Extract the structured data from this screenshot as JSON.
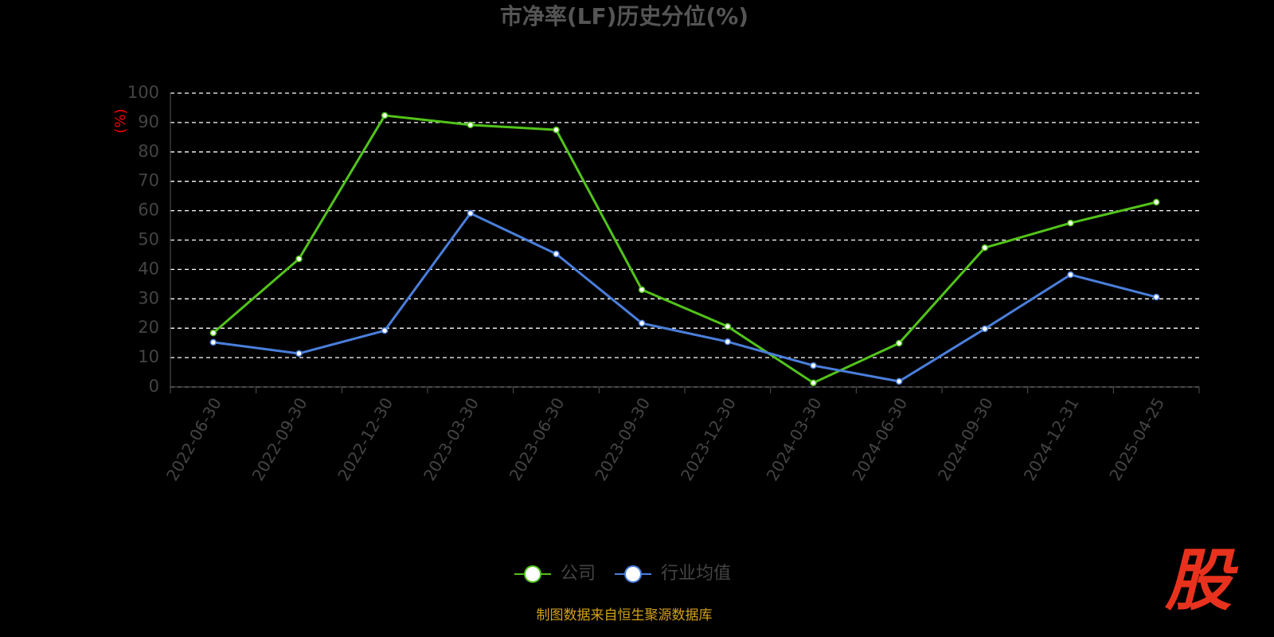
{
  "chart_data": {
    "type": "line",
    "title": "市净率(LF)历史分位(%)",
    "ylabel": "(%)",
    "categories": [
      "2022-06-30",
      "2022-09-30",
      "2022-12-30",
      "2023-03-30",
      "2023-06-30",
      "2023-09-30",
      "2023-12-30",
      "2024-03-30",
      "2024-06-30",
      "2024-09-30",
      "2024-12-31",
      "2025-04-25"
    ],
    "series": [
      {
        "name": "公司",
        "color": "#52c41a",
        "values": [
          18.4,
          43.6,
          92.4,
          89.2,
          87.5,
          33.1,
          20.6,
          1.4,
          14.9,
          47.4,
          55.8,
          62.9
        ]
      },
      {
        "name": "行业均值",
        "color": "#4a7fdc",
        "values": [
          15.2,
          11.4,
          19.2,
          59.1,
          45.3,
          21.7,
          15.4,
          7.3,
          1.9,
          19.8,
          38.2,
          30.6
        ]
      }
    ],
    "ylim": [
      0,
      100
    ],
    "yticks": [
      0,
      10,
      20,
      30,
      40,
      50,
      60,
      70,
      80,
      90,
      100
    ],
    "grid": true,
    "source": "制图数据来自恒生聚源数据库",
    "logo": "股"
  }
}
